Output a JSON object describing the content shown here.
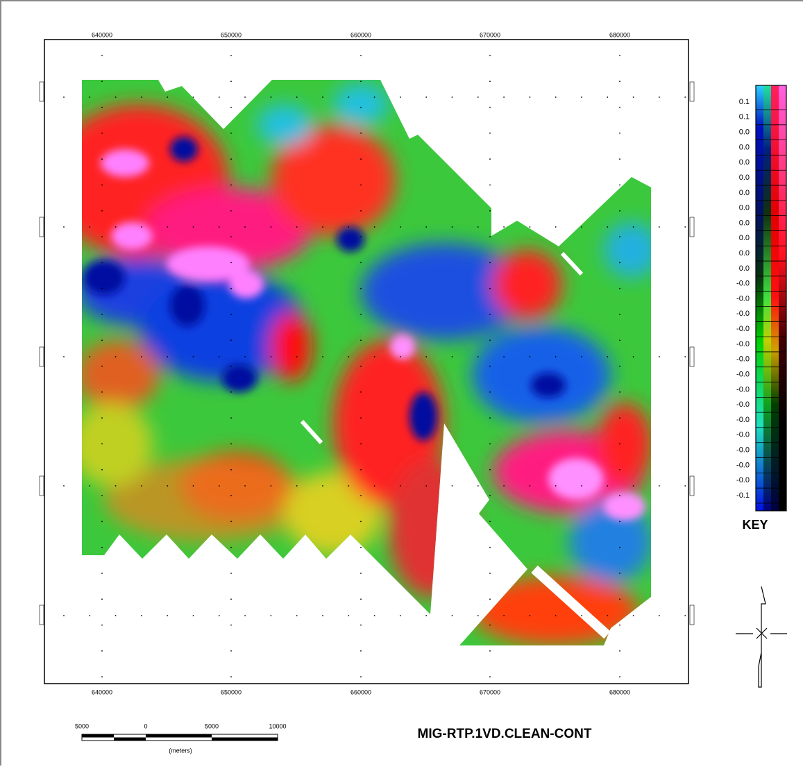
{
  "map": {
    "title": "MIG-RTP.1VD.CLEAN-CONT",
    "x_labels": [
      "640000",
      "650000",
      "660000",
      "670000",
      "680000"
    ],
    "key": {
      "title": "KEY",
      "labels": [
        "0.1",
        "0.1",
        "0.0",
        "0.0",
        "0.0",
        "0.0",
        "0.0",
        "0.0",
        "0.0",
        "0.0",
        "0.0",
        "0.0",
        "-0.0",
        "-0.0",
        "-0.0",
        "-0.0",
        "-0.0",
        "-0.0",
        "-0.0",
        "-0.0",
        "-0.0",
        "-0.0",
        "-0.0",
        "-0.0",
        "-0.0",
        "-0.0",
        "-0.1"
      ]
    },
    "scale_bar": {
      "labels": [
        "5000",
        "0",
        "5000",
        "10000"
      ],
      "unit": "(meters)"
    }
  }
}
